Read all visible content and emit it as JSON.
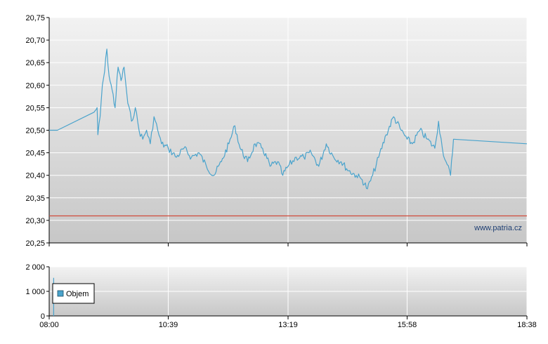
{
  "chart_data": [
    {
      "type": "line",
      "title": "",
      "xlabel": "",
      "ylabel": "",
      "x_ticks": [
        "08:00",
        "10:39",
        "13:19",
        "15:58",
        "18:38"
      ],
      "y_ticks": [
        "20,25",
        "20,30",
        "20,35",
        "20,40",
        "20,45",
        "20,50",
        "20,55",
        "20,60",
        "20,65",
        "20,70",
        "20,75"
      ],
      "ylim": [
        20.25,
        20.75
      ],
      "xlim": [
        "08:00",
        "18:38"
      ],
      "grid": true,
      "watermark": "www.patria.cz",
      "series": [
        {
          "color": "#4aa3cc",
          "points": [
            [
              "08:00",
              20.5
            ],
            [
              "08:11",
              20.5
            ],
            [
              "09:00",
              20.54
            ],
            [
              "09:04",
              20.55
            ],
            [
              "09:05",
              20.49
            ],
            [
              "09:08",
              20.53
            ],
            [
              "09:11",
              20.6
            ],
            [
              "09:14",
              20.63
            ],
            [
              "09:17",
              20.68
            ],
            [
              "09:20",
              20.62
            ],
            [
              "09:24",
              20.59
            ],
            [
              "09:28",
              20.55
            ],
            [
              "09:32",
              20.64
            ],
            [
              "09:36",
              20.61
            ],
            [
              "09:40",
              20.64
            ],
            [
              "09:45",
              20.56
            ],
            [
              "09:50",
              20.52
            ],
            [
              "09:55",
              20.55
            ],
            [
              "10:00",
              20.5
            ],
            [
              "10:05",
              20.48
            ],
            [
              "10:10",
              20.5
            ],
            [
              "10:15",
              20.47
            ],
            [
              "10:20",
              20.53
            ],
            [
              "10:25",
              20.5
            ],
            [
              "10:30",
              20.47
            ],
            [
              "10:39",
              20.46
            ],
            [
              "10:50",
              20.44
            ],
            [
              "11:00",
              20.46
            ],
            [
              "11:10",
              20.44
            ],
            [
              "11:20",
              20.45
            ],
            [
              "11:30",
              20.42
            ],
            [
              "11:40",
              20.4
            ],
            [
              "11:50",
              20.43
            ],
            [
              "12:00",
              20.47
            ],
            [
              "12:08",
              20.51
            ],
            [
              "12:15",
              20.46
            ],
            [
              "12:25",
              20.43
            ],
            [
              "12:35",
              20.47
            ],
            [
              "12:45",
              20.46
            ],
            [
              "12:55",
              20.42
            ],
            [
              "13:05",
              20.43
            ],
            [
              "13:12",
              20.4
            ],
            [
              "13:19",
              20.42
            ],
            [
              "13:30",
              20.44
            ],
            [
              "13:40",
              20.44
            ],
            [
              "13:50",
              20.45
            ],
            [
              "14:00",
              20.42
            ],
            [
              "14:10",
              20.47
            ],
            [
              "14:20",
              20.44
            ],
            [
              "14:30",
              20.43
            ],
            [
              "14:40",
              20.41
            ],
            [
              "14:50",
              20.4
            ],
            [
              "14:58",
              20.39
            ],
            [
              "15:05",
              20.37
            ],
            [
              "15:12",
              20.4
            ],
            [
              "15:20",
              20.44
            ],
            [
              "15:30",
              20.49
            ],
            [
              "15:40",
              20.53
            ],
            [
              "15:50",
              20.5
            ],
            [
              "15:58",
              20.48
            ],
            [
              "16:05",
              20.47
            ],
            [
              "16:15",
              20.5
            ],
            [
              "16:25",
              20.48
            ],
            [
              "16:35",
              20.46
            ],
            [
              "16:40",
              20.52
            ],
            [
              "16:45",
              20.46
            ],
            [
              "16:50",
              20.43
            ],
            [
              "16:56",
              20.4
            ],
            [
              "17:00",
              20.48
            ],
            [
              "18:38",
              20.47
            ]
          ]
        },
        {
          "type": "reference-line",
          "color": "#d04a3a",
          "value": 20.31
        }
      ]
    },
    {
      "type": "bar",
      "title": "",
      "ylim": [
        0,
        2000
      ],
      "y_ticks": [
        "0",
        "1 000",
        "2 000"
      ],
      "x_ticks": [
        "08:00",
        "10:39",
        "13:19",
        "15:58",
        "18:38"
      ],
      "legend": {
        "label": "Objem",
        "placement": "left"
      },
      "series": [
        {
          "name": "Objem",
          "color": "#4aa3cc",
          "points": [
            [
              "08:06",
              1550
            ]
          ]
        }
      ]
    }
  ]
}
